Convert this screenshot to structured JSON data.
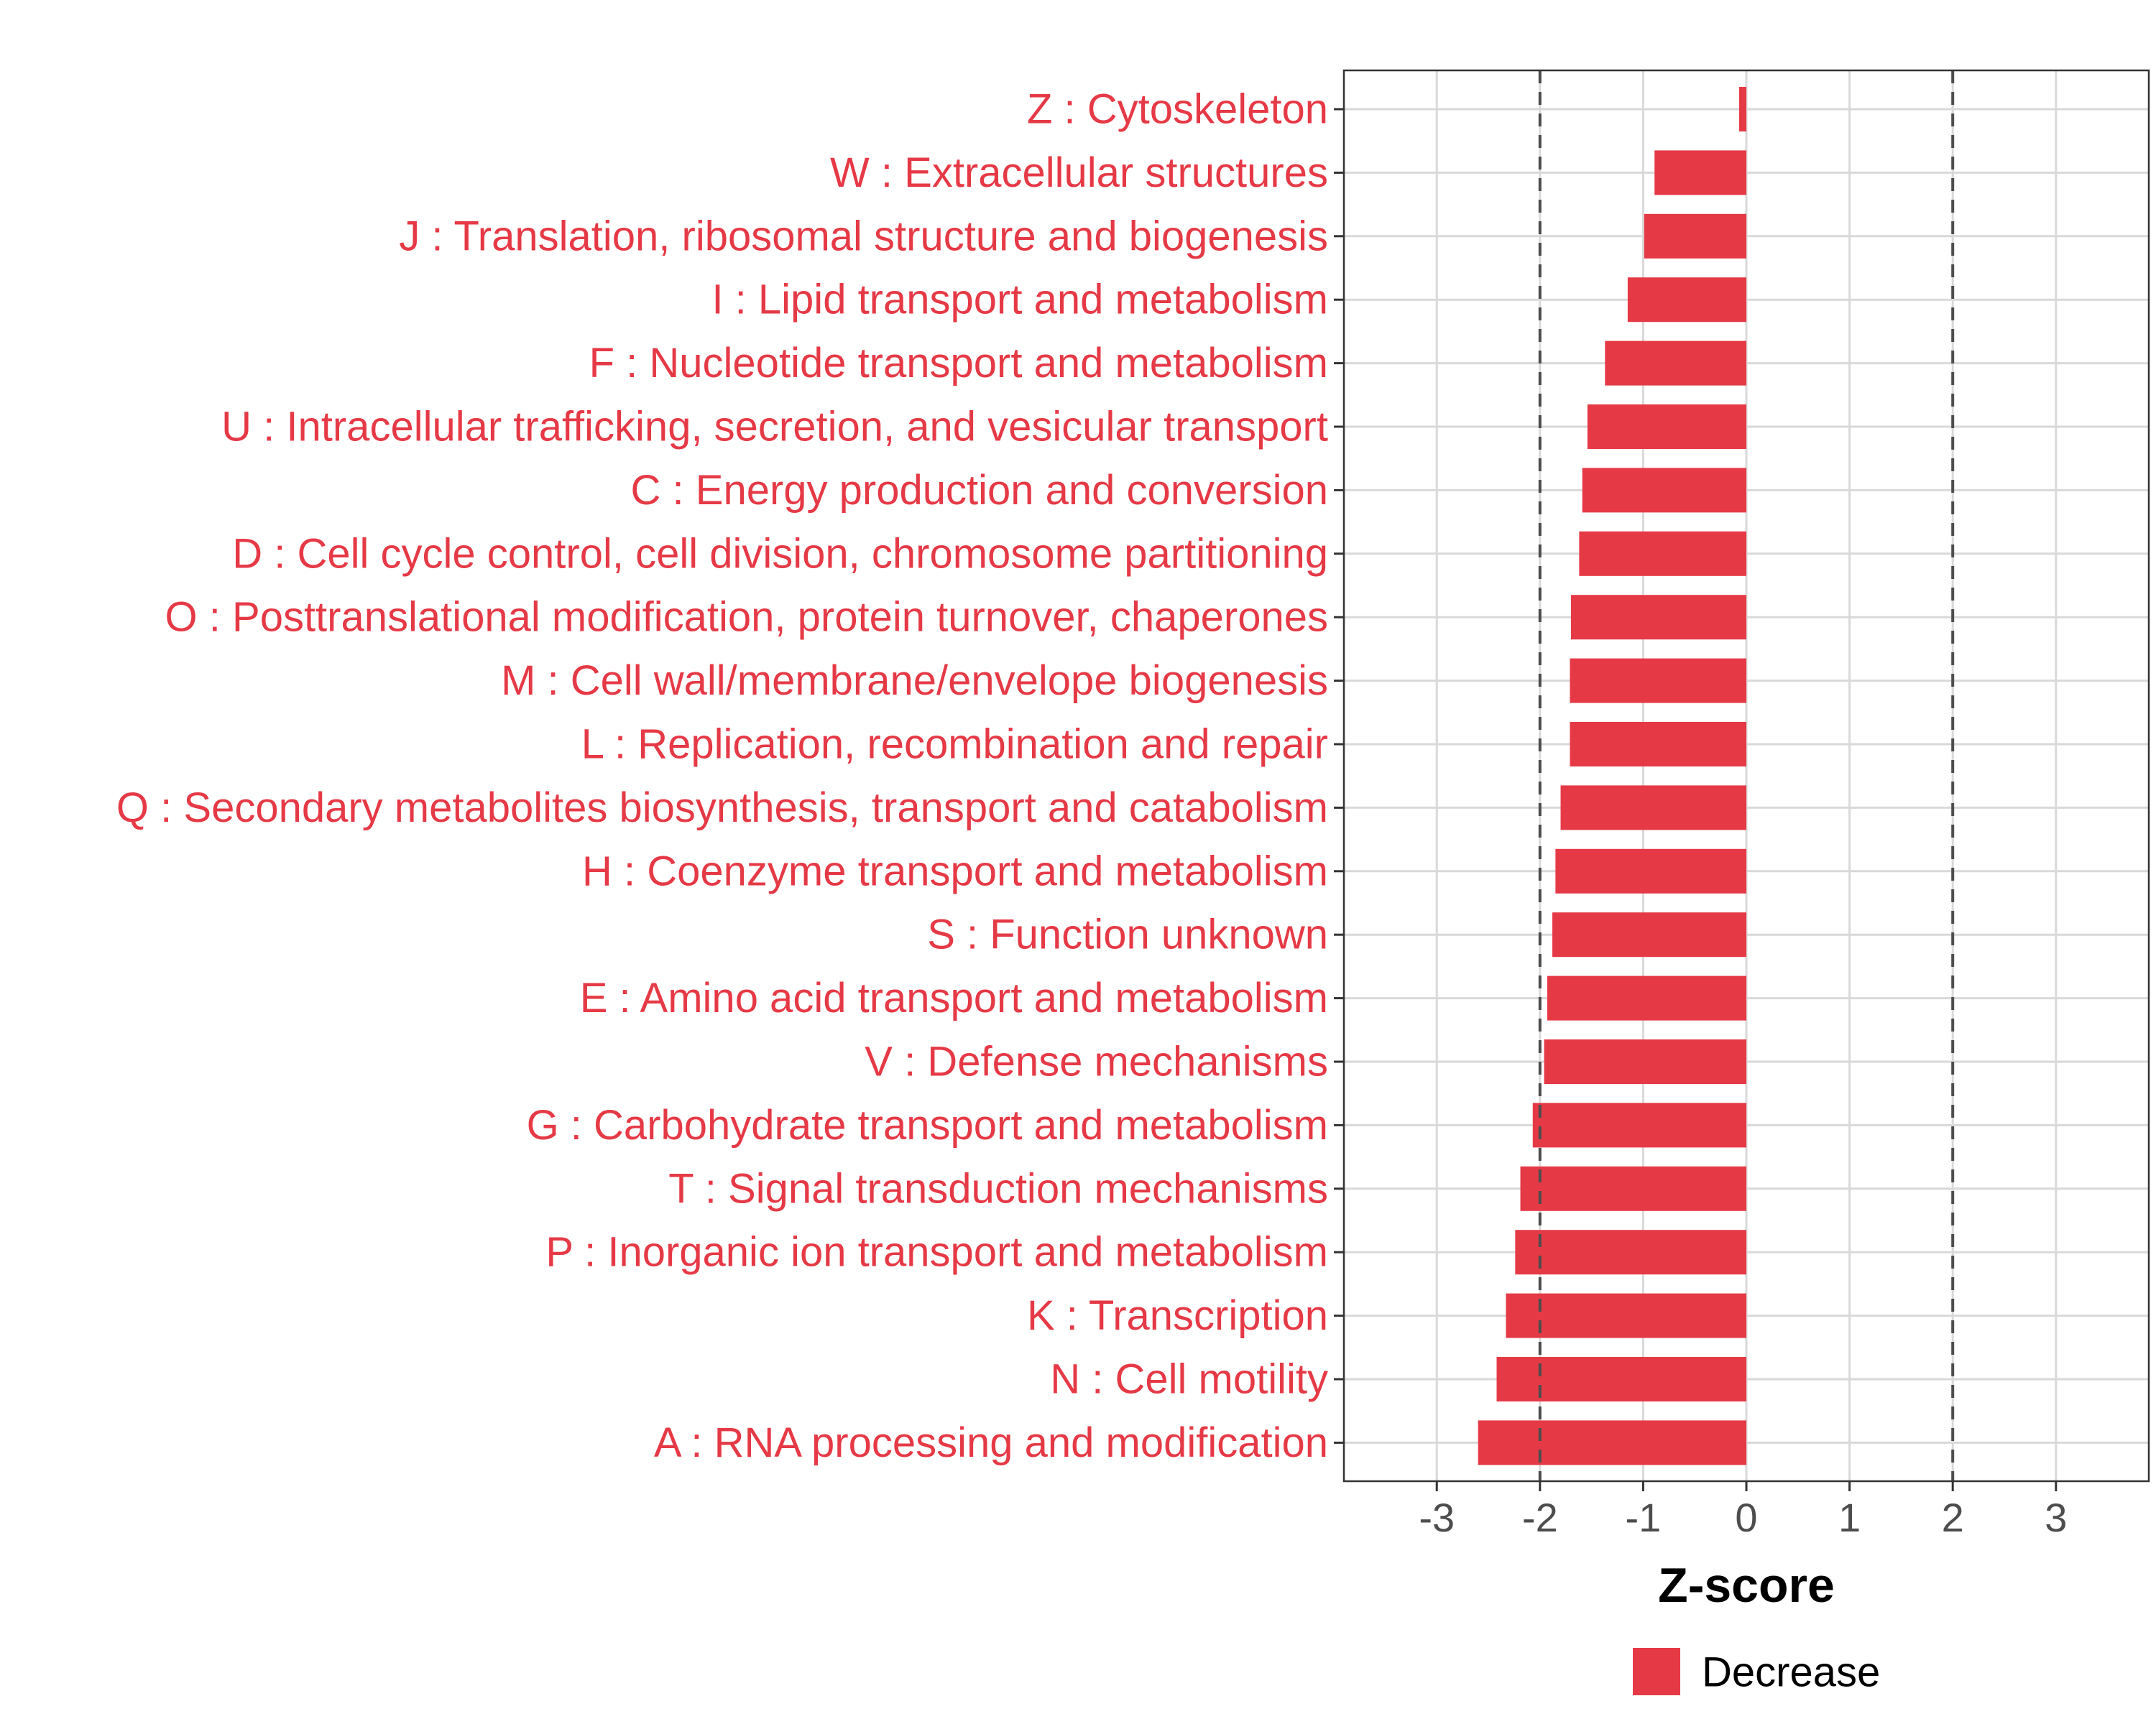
{
  "chart_data": {
    "type": "bar",
    "orientation": "horizontal",
    "xlabel": "Z-score",
    "ylabel": "",
    "xlim": [
      -3.9,
      3.9
    ],
    "xticks": [
      -3,
      -2,
      -1,
      0,
      1,
      2,
      3
    ],
    "xtick_labels": [
      "-3",
      "-2",
      "-1",
      "0",
      "1",
      "2",
      "3"
    ],
    "reference_lines": [
      -2,
      2
    ],
    "grid": true,
    "legend_position": "bottom",
    "categories": [
      "Z : Cytoskeleton",
      "W : Extracellular structures",
      "J : Translation, ribosomal structure and biogenesis",
      "I : Lipid transport and metabolism",
      "F : Nucleotide transport and metabolism",
      "U : Intracellular trafficking, secretion, and vesicular transport",
      "C : Energy production and conversion",
      "D : Cell cycle control, cell division, chromosome partitioning",
      "O : Posttranslational modification, protein turnover, chaperones",
      "M : Cell wall/membrane/envelope biogenesis",
      "L : Replication, recombination and repair",
      "Q : Secondary metabolites biosynthesis, transport and catabolism",
      "H : Coenzyme transport and metabolism",
      "S : Function unknown",
      "E : Amino acid transport and metabolism",
      "V : Defense mechanisms",
      "G : Carbohydrate transport and metabolism",
      "T : Signal transduction mechanisms",
      "P : Inorganic ion transport and metabolism",
      "K : Transcription",
      "N : Cell motility",
      "A : RNA processing and modification"
    ],
    "series": [
      {
        "name": "Decrease",
        "color": "#e63946",
        "values": [
          -0.07,
          -0.89,
          -0.99,
          -1.15,
          -1.37,
          -1.54,
          -1.59,
          -1.62,
          -1.7,
          -1.71,
          -1.71,
          -1.8,
          -1.85,
          -1.88,
          -1.93,
          -1.96,
          -2.07,
          -2.19,
          -2.24,
          -2.33,
          -2.42,
          -2.6
        ]
      }
    ]
  },
  "colors": {
    "bar": "#e63946",
    "label": "#e63946",
    "grid": "#d9d9d9",
    "reference_line": "#4d4d4d"
  }
}
